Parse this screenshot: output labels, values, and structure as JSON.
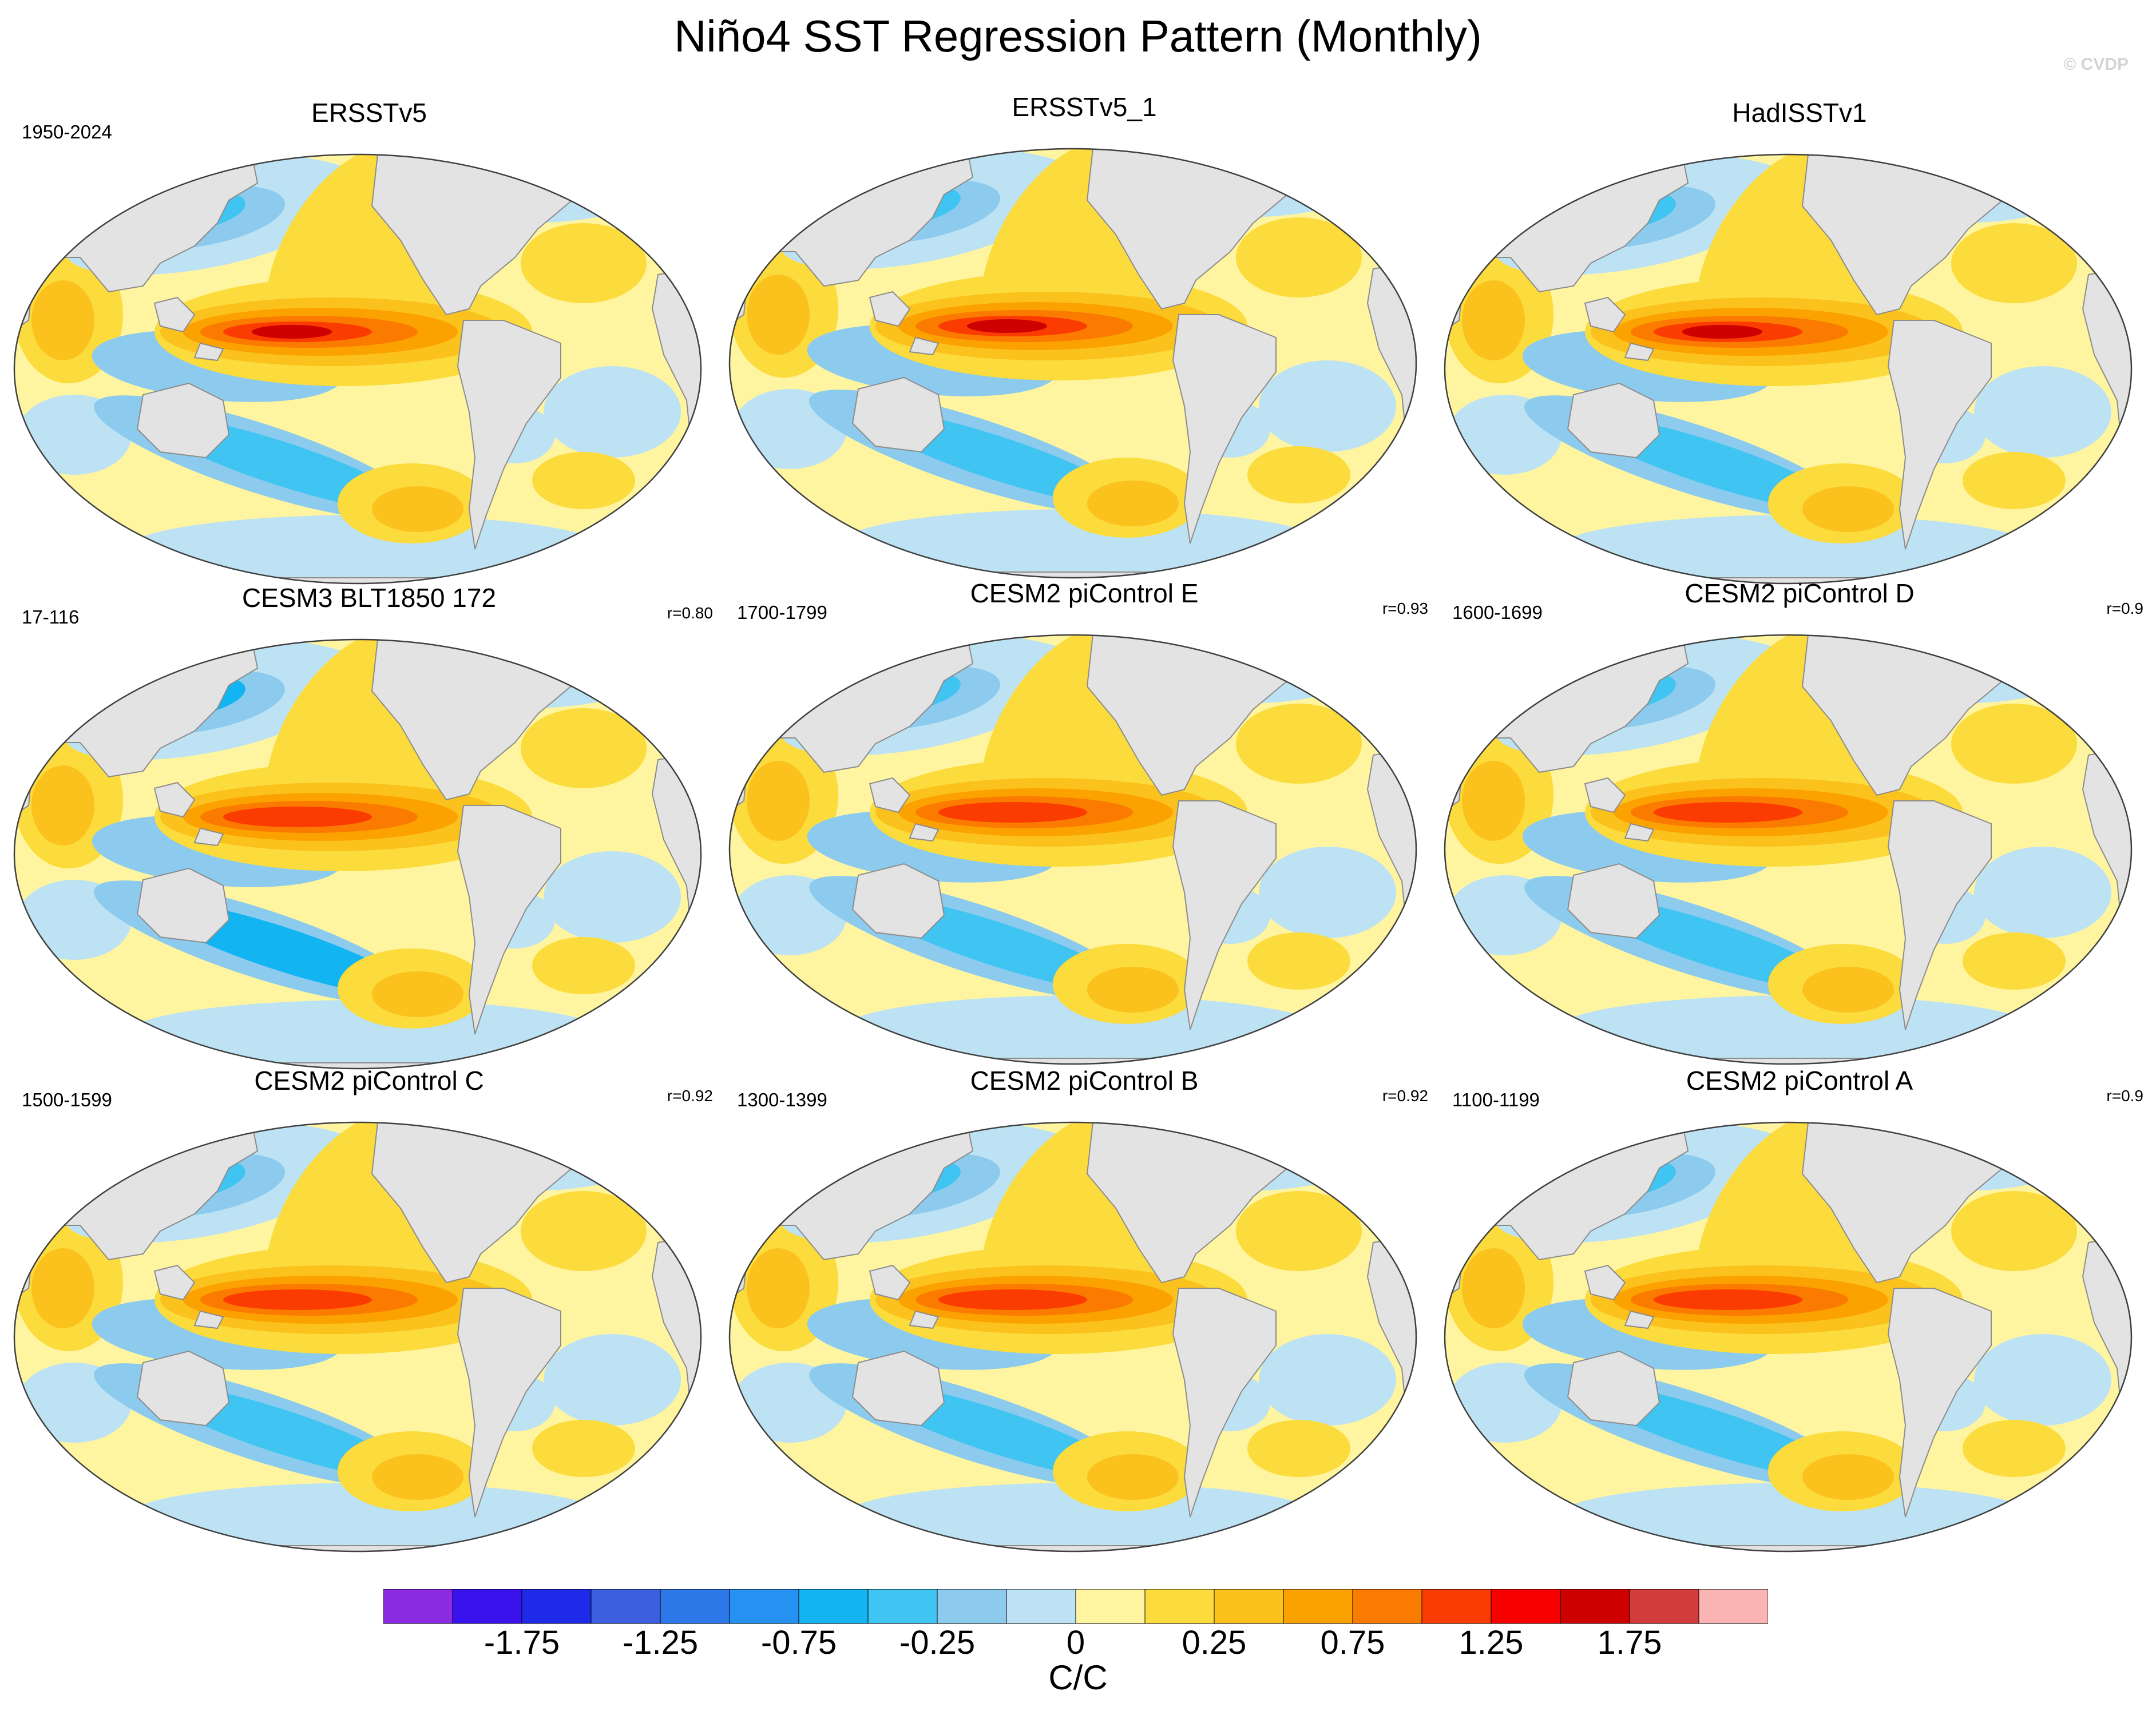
{
  "title": "Niño4 SST Regression Pattern (Monthly)",
  "watermark": "© CVDP",
  "panels": [
    {
      "name": "ERSSTv5",
      "years": "1950-2024",
      "corr": "",
      "variant": "obs"
    },
    {
      "name": "ERSSTv5_1",
      "years": "",
      "corr": "",
      "variant": "obs"
    },
    {
      "name": "HadISSTv1",
      "years": "",
      "corr": "",
      "variant": "had"
    },
    {
      "name": "CESM3 BLT1850 172",
      "years": "17-116",
      "corr": "r=0.80",
      "variant": "cesm3"
    },
    {
      "name": "CESM2 piControl E",
      "years": "1700-1799",
      "corr": "r=0.93",
      "variant": "ctl"
    },
    {
      "name": "CESM2 piControl D",
      "years": "1600-1699",
      "corr": "r=0.9",
      "variant": "ctl"
    },
    {
      "name": "CESM2 piControl C",
      "years": "1500-1599",
      "corr": "r=0.92",
      "variant": "ctl"
    },
    {
      "name": "CESM2 piControl B",
      "years": "1300-1399",
      "corr": "r=0.92",
      "variant": "ctl"
    },
    {
      "name": "CESM2 piControl A",
      "years": "1100-1199",
      "corr": "r=0.9",
      "variant": "ctl"
    }
  ],
  "colorbar": {
    "unit": "C/C",
    "tick_labels": [
      "-1.75",
      "-1.25",
      "-0.75",
      "-0.25",
      "0",
      "0.25",
      "0.75",
      "1.25",
      "1.75"
    ],
    "colors": [
      "#8b2be2",
      "#3a12ee",
      "#1f2ae8",
      "#3b5fde",
      "#2c78e8",
      "#2591f0",
      "#12b4f2",
      "#40c4f2",
      "#8ccbed",
      "#bde2f4",
      "#fff5a0",
      "#fcdb3c",
      "#fbc21e",
      "#fba200",
      "#fb7a00",
      "#fb3c00",
      "#f90000",
      "#cf0000",
      "#d43c3c",
      "#fbb4b4"
    ]
  },
  "colors": {
    "land": "#e3e3e3",
    "coast": "#8c8c8c",
    "ocean_frame": "#404040"
  }
}
